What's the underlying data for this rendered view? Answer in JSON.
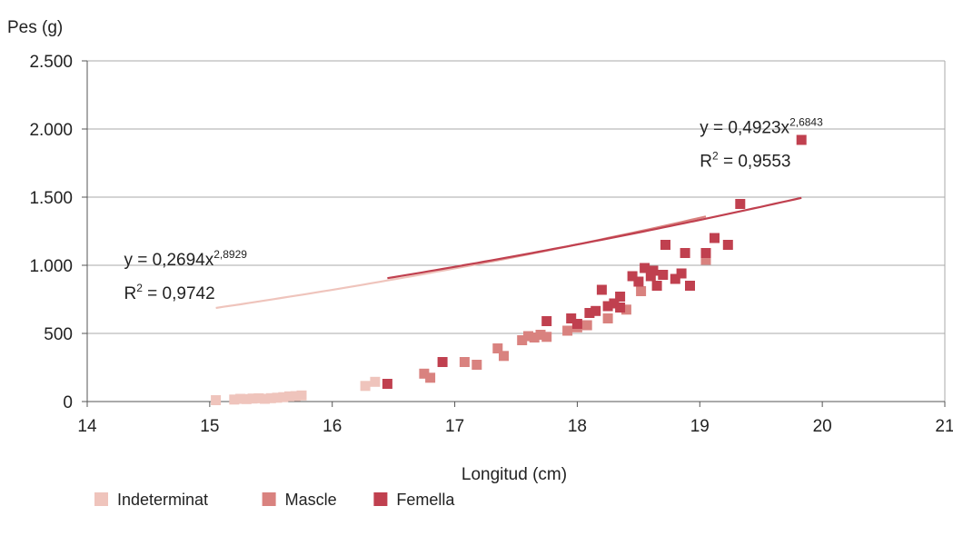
{
  "chart_data": {
    "type": "scatter",
    "ylabel": "Pes (g)",
    "xlabel": "Longitud (cm)",
    "xlim": [
      14,
      21
    ],
    "ylim": [
      0,
      2500
    ],
    "x_ticks": [
      14,
      15,
      16,
      17,
      18,
      19,
      20,
      21
    ],
    "y_ticks": [
      0,
      500,
      1000,
      1500,
      2000,
      2500
    ],
    "y_tick_labels": [
      "0",
      "500",
      "1.000",
      "1.500",
      "2.000",
      "2.500"
    ],
    "grid": "horizontal",
    "legend_position": "bottom-left",
    "series": [
      {
        "name": "Indeterminat",
        "color": "#efc4bc",
        "points": [
          [
            15.05,
            10
          ],
          [
            15.2,
            15
          ],
          [
            15.25,
            20
          ],
          [
            15.3,
            18
          ],
          [
            15.35,
            22
          ],
          [
            15.4,
            24
          ],
          [
            15.45,
            20
          ],
          [
            15.5,
            25
          ],
          [
            15.55,
            28
          ],
          [
            15.6,
            32
          ],
          [
            15.65,
            38
          ],
          [
            15.7,
            40
          ],
          [
            15.75,
            45
          ],
          [
            16.27,
            115
          ],
          [
            16.35,
            145
          ]
        ]
      },
      {
        "name": "Mascle",
        "color": "#d9827f",
        "points": [
          [
            16.75,
            205
          ],
          [
            16.8,
            175
          ],
          [
            17.08,
            290
          ],
          [
            17.18,
            270
          ],
          [
            17.35,
            390
          ],
          [
            17.4,
            335
          ],
          [
            17.55,
            450
          ],
          [
            17.6,
            480
          ],
          [
            17.65,
            470
          ],
          [
            17.7,
            490
          ],
          [
            17.75,
            475
          ],
          [
            17.92,
            520
          ],
          [
            18.0,
            545
          ],
          [
            18.08,
            560
          ],
          [
            18.25,
            610
          ],
          [
            18.4,
            675
          ],
          [
            18.52,
            810
          ],
          [
            19.05,
            1040
          ]
        ]
      },
      {
        "name": "Femella",
        "color": "#c0404f",
        "points": [
          [
            16.45,
            130
          ],
          [
            16.9,
            290
          ],
          [
            17.75,
            590
          ],
          [
            17.95,
            610
          ],
          [
            18.0,
            570
          ],
          [
            18.1,
            650
          ],
          [
            18.15,
            665
          ],
          [
            18.2,
            820
          ],
          [
            18.25,
            700
          ],
          [
            18.3,
            720
          ],
          [
            18.35,
            770
          ],
          [
            18.35,
            690
          ],
          [
            18.45,
            920
          ],
          [
            18.5,
            880
          ],
          [
            18.55,
            980
          ],
          [
            18.6,
            920
          ],
          [
            18.62,
            960
          ],
          [
            18.65,
            850
          ],
          [
            18.7,
            930
          ],
          [
            18.72,
            1150
          ],
          [
            18.8,
            900
          ],
          [
            18.85,
            940
          ],
          [
            18.88,
            1090
          ],
          [
            18.92,
            850
          ],
          [
            19.05,
            1090
          ],
          [
            19.12,
            1200
          ],
          [
            19.23,
            1150
          ],
          [
            19.33,
            1450
          ],
          [
            19.83,
            1920
          ]
        ]
      }
    ],
    "trendlines": [
      {
        "equation_prefix": "y = 0,2694x",
        "exponent": "2,8929",
        "r2_prefix": "R",
        "r2_sup": "2",
        "r2_value": " = 0,9742",
        "a": 0.2694,
        "b": 2.8929,
        "x_range": [
          15.05,
          19.05
        ],
        "color": "#efc4bc",
        "color_end": "#d9827f",
        "label_anchor_xy": [
          14.3,
          1000
        ]
      },
      {
        "equation_prefix": "y = 0,4923x",
        "exponent": "2,6843",
        "r2_prefix": "R",
        "r2_sup": "2",
        "r2_value": " = 0,9553",
        "a": 0.4923,
        "b": 2.6843,
        "x_range": [
          16.45,
          19.83
        ],
        "color": "#c0404f",
        "label_anchor_xy": [
          19.0,
          1970
        ]
      }
    ]
  }
}
